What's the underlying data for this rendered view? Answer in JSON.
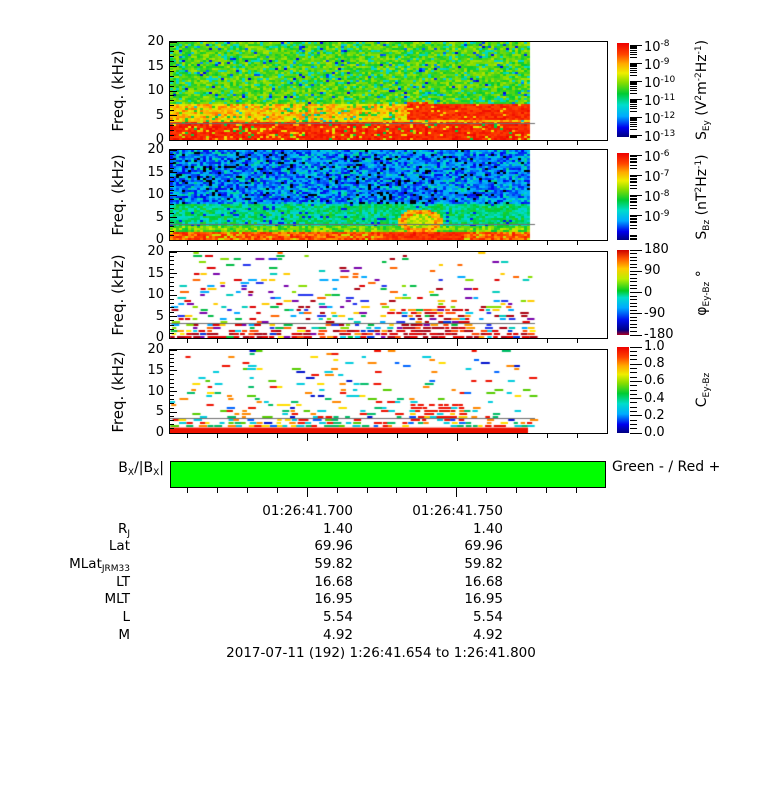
{
  "chart_data": {
    "type": "heatmap",
    "description": "Stack of four wave spectrograms vs time with colorbars, a magnetic field sign bar, and ephemeris table",
    "x_axis": {
      "start_s": 41.654,
      "end_s": 41.8,
      "data_end_s": 41.774,
      "first_minor_s": 41.66,
      "minor_step_s": 0.01,
      "major_ticks_s": [
        41.7,
        41.75
      ],
      "major_tick_labels": [
        "01:26:41.700",
        "01:26:41.750"
      ]
    },
    "overlay_line_kHz": 3.5,
    "colormap": [
      [
        0,
        "#000080"
      ],
      [
        0.1,
        "#0000ee"
      ],
      [
        0.22,
        "#00aaff"
      ],
      [
        0.34,
        "#00ddcc"
      ],
      [
        0.46,
        "#00cc33"
      ],
      [
        0.58,
        "#88dd00"
      ],
      [
        0.68,
        "#eeee00"
      ],
      [
        0.78,
        "#ffaa00"
      ],
      [
        0.88,
        "#ff4400"
      ],
      [
        1,
        "#ee0000"
      ]
    ],
    "phase_colormap": [
      [
        0,
        "#aa0022"
      ],
      [
        0.06,
        "#000088"
      ],
      [
        0.18,
        "#0011ee"
      ],
      [
        0.32,
        "#00aaff"
      ],
      [
        0.44,
        "#00ddcc"
      ],
      [
        0.52,
        "#00cc22"
      ],
      [
        0.66,
        "#bbee00"
      ],
      [
        0.78,
        "#ffcc00"
      ],
      [
        0.9,
        "#ff5500"
      ],
      [
        1,
        "#cc0000"
      ]
    ],
    "panels": [
      {
        "id": "sey",
        "ylabel": "Freq. (kHz)",
        "ylim": [
          0,
          20
        ],
        "yticks": [
          0,
          5,
          10,
          15,
          20
        ],
        "summary": "Electric spectral density: green/cyan above 7 kHz with blue speckles, yellow-orange 3.5-7 kHz, intense red below 3.5 kHz, strong red enhancement 4-8 kHz in last third of data",
        "colorbar": {
          "scale": "log",
          "tick_exponents": [
            -8,
            -9,
            -10,
            -11,
            -12,
            -13
          ],
          "label_parts": [
            {
              "t": "S"
            },
            {
              "t": "Ey",
              "s": "sub"
            },
            {
              "t": " (V"
            },
            {
              "t": "2",
              "s": "sup"
            },
            {
              "t": "m"
            },
            {
              "t": "-2",
              "s": "sup"
            },
            {
              "t": "Hz"
            },
            {
              "t": "-1",
              "s": "sup"
            },
            {
              "t": ")"
            }
          ]
        }
      },
      {
        "id": "sbz",
        "ylabel": "Freq. (kHz)",
        "ylim": [
          0,
          20
        ],
        "yticks": [
          0,
          5,
          10,
          15,
          20
        ],
        "summary": "Magnetic spectral density: dark blue with black patches above 8 kHz, cyan-green 2-8 kHz, orange-red below 2 kHz, orange hook feature near 41.74 at 3-6 kHz",
        "colorbar": {
          "scale": "log",
          "tick_exponents": [
            -6,
            -7,
            -8,
            -9
          ],
          "label_parts": [
            {
              "t": "S"
            },
            {
              "t": "Bz",
              "s": "sub"
            },
            {
              "t": " (nT"
            },
            {
              "t": "2",
              "s": "sup"
            },
            {
              "t": "Hz"
            },
            {
              "t": "-1",
              "s": "sup"
            },
            {
              "t": ")"
            }
          ]
        }
      },
      {
        "id": "phase",
        "ylabel": "Freq. (kHz)",
        "ylim": [
          0,
          20
        ],
        "yticks": [
          0,
          5,
          10,
          15,
          20
        ],
        "summary": "Phase Ey-Bz: sparse multicolor speckles on white, denser red/dark-red below 2 kHz and in blob near 41.74 at 3-7 kHz",
        "colorbar": {
          "scale": "linear",
          "tick_labels": [
            "180",
            "90",
            "0",
            "-90",
            "-180"
          ],
          "label_parts": [
            {
              "t": "φ"
            },
            {
              "t": "Ey-Bz",
              "s": "sub"
            },
            {
              "t": " °"
            }
          ]
        }
      },
      {
        "id": "coh",
        "ylabel": "Freq. (kHz)",
        "ylim": [
          0,
          20
        ],
        "yticks": [
          0,
          5,
          10,
          15,
          20
        ],
        "summary": "Coherence Ey-Bz: sparse multicolor speckles on white, solid red band below ~1.3 kHz, red blob near 41.74 at 4-7 kHz",
        "colorbar": {
          "scale": "linear",
          "tick_labels": [
            "1.0",
            "0.8",
            "0.6",
            "0.4",
            "0.2",
            "0.0"
          ],
          "label_parts": [
            {
              "t": "C"
            },
            {
              "t": "Ey-Bz",
              "s": "sub"
            }
          ]
        }
      }
    ],
    "bx_bar": {
      "label_parts": [
        {
          "t": "B"
        },
        {
          "t": "X",
          "s": "sub"
        },
        {
          "t": "/|B"
        },
        {
          "t": "X",
          "s": "sub"
        },
        {
          "t": "|"
        }
      ],
      "state": "negative",
      "color": "#00ff00",
      "legend": "Green - / Red +"
    }
  },
  "table": {
    "time_columns": [
      "01:26:41.700",
      "01:26:41.750"
    ],
    "rows": [
      {
        "label": "R",
        "label_sub": "J",
        "values": [
          "1.40",
          "1.40"
        ]
      },
      {
        "label": "Lat",
        "label_sub": "",
        "values": [
          "69.96",
          "69.96"
        ]
      },
      {
        "label": "MLat",
        "label_sub": "JRM33",
        "values": [
          "59.82",
          "59.82"
        ]
      },
      {
        "label": "LT",
        "label_sub": "",
        "values": [
          "16.68",
          "16.68"
        ]
      },
      {
        "label": "MLT",
        "label_sub": "",
        "values": [
          "16.95",
          "16.95"
        ]
      },
      {
        "label": "L",
        "label_sub": "",
        "values": [
          "5.54",
          "5.54"
        ]
      },
      {
        "label": "M",
        "label_sub": "",
        "values": [
          "4.92",
          "4.92"
        ]
      }
    ]
  },
  "footer": "2017-07-11 (192) 1:26:41.654 to 1:26:41.800",
  "colors": {
    "bar_green": "#00ff00",
    "overlay_line": "#6e6e6e",
    "text": "#000000"
  }
}
